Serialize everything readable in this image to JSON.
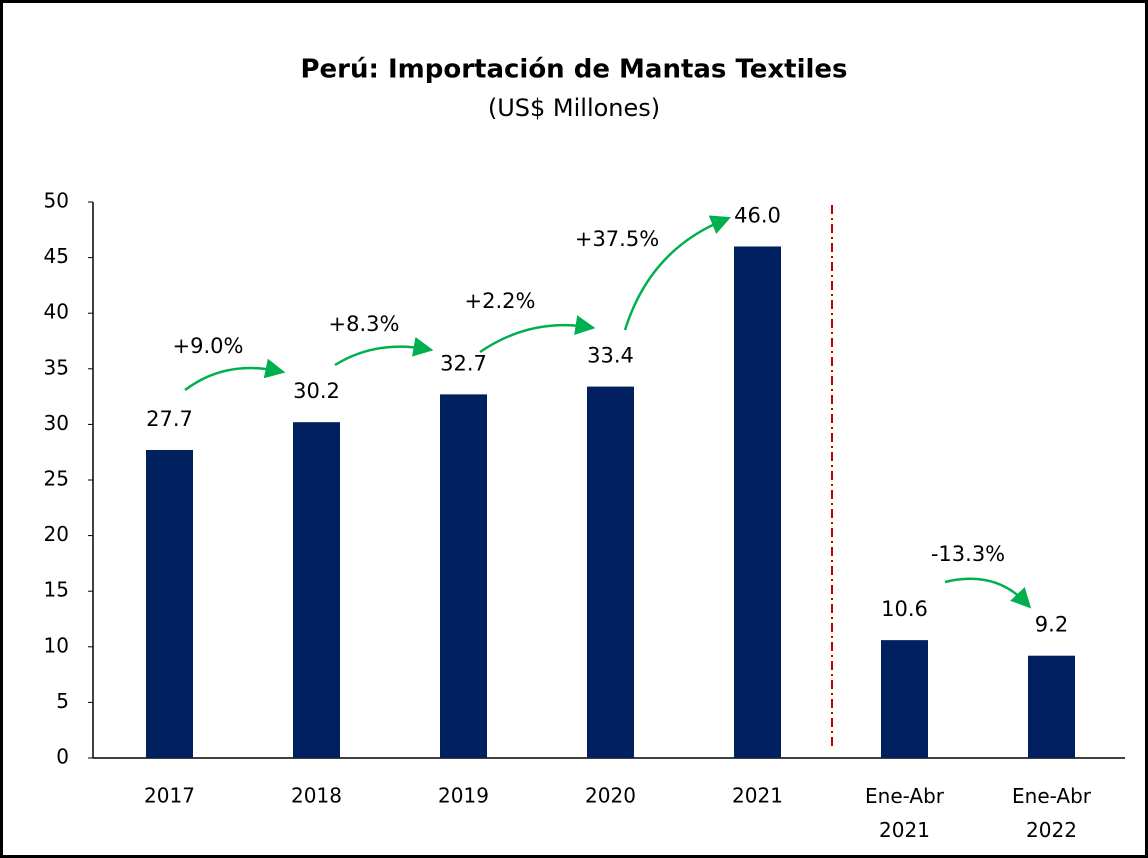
{
  "chart_data": {
    "type": "bar",
    "title": "Perú: Importación de Mantas Textiles",
    "subtitle": "(US$ Millones)",
    "categories": [
      "2017",
      "2018",
      "2019",
      "2020",
      "2021",
      "Ene-Abr 2021",
      "Ene-Abr 2022"
    ],
    "values": [
      27.7,
      30.2,
      32.7,
      33.4,
      46,
      10.6,
      9.2
    ],
    "value_labels": [
      "27.7",
      "30.2",
      "32.7",
      "33.4",
      "46.0",
      "10.6",
      "9.2"
    ],
    "color": "#002060",
    "ylim": [
      0,
      50
    ],
    "yticks": [
      0,
      5,
      10,
      15,
      20,
      25,
      30,
      35,
      40,
      45,
      50
    ],
    "grid": false,
    "annotations": [
      "+9.0%",
      "+8.3%",
      "+2.2%",
      "+37.5%",
      "-13.3%"
    ]
  }
}
